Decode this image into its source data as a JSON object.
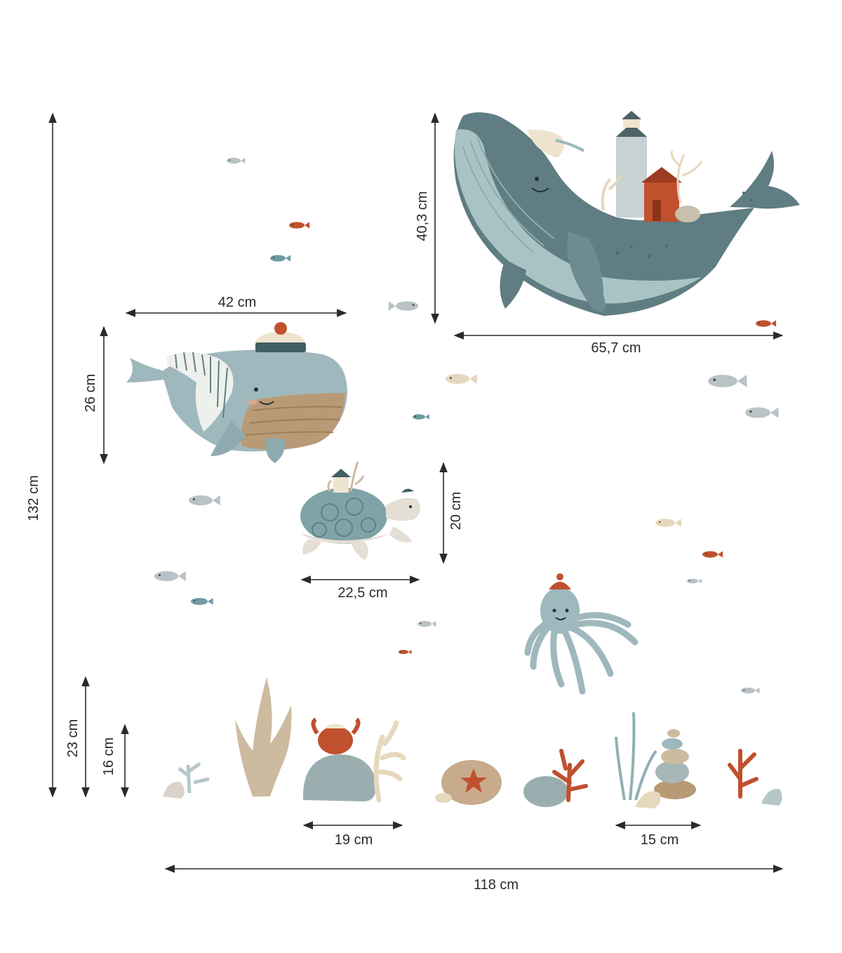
{
  "dimensions": {
    "total_height": "132 cm",
    "total_width": "118 cm",
    "big_whale_width": "65,7 cm",
    "big_whale_height": "40,3 cm",
    "sailor_whale_width": "42 cm",
    "sailor_whale_height": "26 cm",
    "turtle_width": "22,5 cm",
    "turtle_height": "20 cm",
    "seaweed_height": "23 cm",
    "crab_rock_height": "16 cm",
    "crab_rock_width": "19 cm",
    "stones_width": "15 cm"
  },
  "colors": {
    "arrow": "#2a2a2a",
    "whale_dark": "#5f7d82",
    "whale_belly": "#a9c3c5",
    "whale_light": "#9fb8bd",
    "sand": "#b89a76",
    "rust": "#c0502e",
    "cream": "#efe4cf",
    "rock": "#9aaeb0",
    "fish_grey": "#b9c2c6",
    "fish_blue": "#6f9aa4",
    "coral_cream": "#e6d8bd",
    "seaweed": "#cdbba0"
  }
}
